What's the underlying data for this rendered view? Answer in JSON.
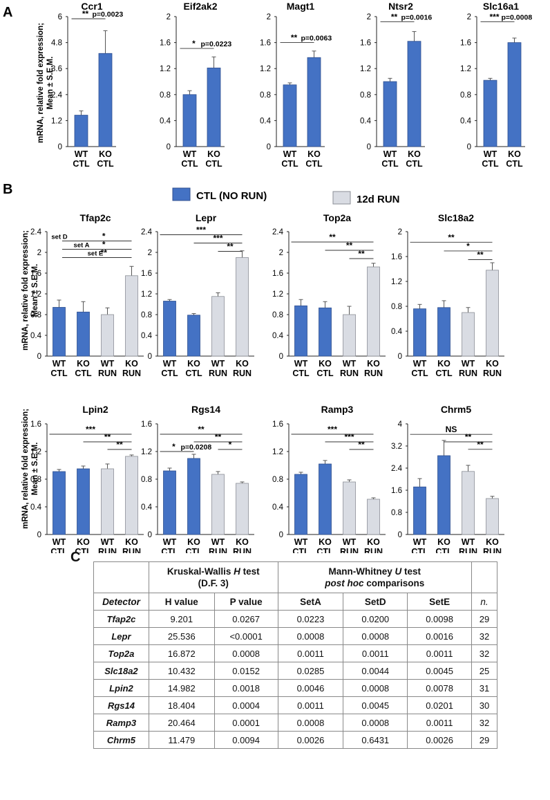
{
  "panel_labels": {
    "a": "A",
    "b": "B",
    "c": "C"
  },
  "ylabel_line1": "mRNA, relative fold expression;",
  "ylabel_line2": "Mean ± S.E.M.",
  "legend": {
    "ctl": "CTL (NO RUN)",
    "run": "12d RUN"
  },
  "colors": {
    "ctl": "#4472C4",
    "run": "#D9DCE3",
    "ctl_edge": "#2F4F8F",
    "run_edge": "#8A8E96"
  },
  "chart_data": [
    {
      "type": "bar",
      "title": "Ccr1",
      "categories": [
        [
          "WT",
          "CTL"
        ],
        [
          "KO",
          "CTL"
        ]
      ],
      "groups": [
        "ctl",
        "ctl"
      ],
      "values": [
        1.45,
        4.3
      ],
      "errors": [
        0.2,
        1.05
      ],
      "yticks": [
        "6",
        "4.8",
        "3.6",
        "2.4",
        "1.2",
        "0"
      ],
      "ylim": [
        0,
        6
      ],
      "brackets": [
        {
          "from": 0,
          "to": 1,
          "stars": "**",
          "p": "p=0.0023",
          "y": 5.9
        }
      ]
    },
    {
      "type": "bar",
      "title": "Eif2ak2",
      "categories": [
        [
          "WT",
          "CTL"
        ],
        [
          "KO",
          "CTL"
        ]
      ],
      "groups": [
        "ctl",
        "ctl"
      ],
      "values": [
        0.8,
        1.21
      ],
      "errors": [
        0.06,
        0.17
      ],
      "yticks": [
        "2",
        "1.6",
        "1.2",
        "0.8",
        "0.4",
        "0"
      ],
      "ylim": [
        0,
        2
      ],
      "brackets": [
        {
          "from": 0,
          "to": 1,
          "stars": "*",
          "p": "p=0.0223",
          "y": 1.51
        }
      ]
    },
    {
      "type": "bar",
      "title": "Magt1",
      "categories": [
        [
          "WT",
          "CTL"
        ],
        [
          "KO",
          "CTL"
        ]
      ],
      "groups": [
        "ctl",
        "ctl"
      ],
      "values": [
        0.95,
        1.37
      ],
      "errors": [
        0.03,
        0.1
      ],
      "yticks": [
        "2",
        "1.6",
        "1.2",
        "0.8",
        "0.4",
        "0"
      ],
      "ylim": [
        0,
        2
      ],
      "brackets": [
        {
          "from": 0,
          "to": 1,
          "stars": "**",
          "p": "p=0.0063",
          "y": 1.6
        }
      ]
    },
    {
      "type": "bar",
      "title": "Ntsr2",
      "categories": [
        [
          "WT",
          "CTL"
        ],
        [
          "KO",
          "CTL"
        ]
      ],
      "groups": [
        "ctl",
        "ctl"
      ],
      "values": [
        1.0,
        1.62
      ],
      "errors": [
        0.05,
        0.15
      ],
      "yticks": [
        "2",
        "1.6",
        "1.2",
        "0.8",
        "0.4",
        "0"
      ],
      "ylim": [
        0,
        2
      ],
      "brackets": [
        {
          "from": 0,
          "to": 1,
          "stars": "**",
          "p": "p=0.0016",
          "y": 1.92
        }
      ]
    },
    {
      "type": "bar",
      "title": "Slc16a1",
      "categories": [
        [
          "WT",
          "CTL"
        ],
        [
          "KO",
          "CTL"
        ]
      ],
      "groups": [
        "ctl",
        "ctl"
      ],
      "values": [
        1.02,
        1.6
      ],
      "errors": [
        0.03,
        0.07
      ],
      "yticks": [
        "2",
        "1.6",
        "1.2",
        "0.8",
        "0.4",
        "0"
      ],
      "ylim": [
        0,
        2
      ],
      "brackets": [
        {
          "from": 0,
          "to": 1,
          "stars": "***",
          "p": "p=0.0008",
          "y": 1.92
        }
      ]
    },
    {
      "type": "bar",
      "title": "Tfap2c",
      "categories": [
        [
          "WT",
          "CTL"
        ],
        [
          "KO",
          "CTL"
        ],
        [
          "WT",
          "RUN"
        ],
        [
          "KO",
          "RUN"
        ]
      ],
      "groups": [
        "ctl",
        "ctl",
        "run",
        "run"
      ],
      "values": [
        0.94,
        0.85,
        0.8,
        1.55
      ],
      "errors": [
        0.14,
        0.2,
        0.13,
        0.18
      ],
      "yticks": [
        "2.4",
        "2",
        "1.6",
        "1.2",
        "0.8",
        "0.4",
        "0"
      ],
      "ylim": [
        0,
        2.4
      ],
      "brackets": [
        {
          "from": 0,
          "to": 3,
          "stars": "*",
          "label": "set D",
          "y": 2.22
        },
        {
          "from": 1,
          "to": 3,
          "stars": "*",
          "label": "set A",
          "y": 2.06
        },
        {
          "from": 2,
          "to": 3,
          "stars": "**",
          "label": "set E",
          "y": 1.9
        }
      ]
    },
    {
      "type": "bar",
      "title": "Lepr",
      "categories": [
        [
          "WT",
          "CTL"
        ],
        [
          "KO",
          "CTL"
        ],
        [
          "WT",
          "RUN"
        ],
        [
          "KO",
          "RUN"
        ]
      ],
      "groups": [
        "ctl",
        "ctl",
        "run",
        "run"
      ],
      "values": [
        1.06,
        0.79,
        1.15,
        1.9
      ],
      "errors": [
        0.03,
        0.03,
        0.07,
        0.13
      ],
      "yticks": [
        "2.4",
        "2",
        "1.6",
        "1.2",
        "0.8",
        "0.4",
        "0"
      ],
      "ylim": [
        0,
        2.4
      ],
      "brackets": [
        {
          "from": 0,
          "to": 3,
          "stars": "***",
          "y": 2.34
        },
        {
          "from": 1,
          "to": 3,
          "stars": "***",
          "y": 2.18
        },
        {
          "from": 2,
          "to": 3,
          "stars": "**",
          "y": 2.02
        }
      ]
    },
    {
      "type": "bar",
      "title": "Top2a",
      "categories": [
        [
          "WT",
          "CTL"
        ],
        [
          "KO",
          "CTL"
        ],
        [
          "WT",
          "RUN"
        ],
        [
          "KO",
          "RUN"
        ]
      ],
      "groups": [
        "ctl",
        "ctl",
        "run",
        "run"
      ],
      "values": [
        0.97,
        0.93,
        0.8,
        1.72
      ],
      "errors": [
        0.12,
        0.12,
        0.16,
        0.07
      ],
      "yticks": [
        "2.4",
        "2",
        "1.6",
        "1.2",
        "0.8",
        "0.4",
        "0"
      ],
      "ylim": [
        0,
        2.4
      ],
      "brackets": [
        {
          "from": 0,
          "to": 3,
          "stars": "**",
          "y": 2.2
        },
        {
          "from": 1,
          "to": 3,
          "stars": "**",
          "y": 2.04
        },
        {
          "from": 2,
          "to": 3,
          "stars": "**",
          "y": 1.88
        }
      ]
    },
    {
      "type": "bar",
      "title": "Slc18a2",
      "categories": [
        [
          "WT",
          "CTL"
        ],
        [
          "KO",
          "CTL"
        ],
        [
          "WT",
          "RUN"
        ],
        [
          "KO",
          "RUN"
        ]
      ],
      "groups": [
        "ctl",
        "ctl",
        "run",
        "run"
      ],
      "values": [
        0.76,
        0.78,
        0.7,
        1.38
      ],
      "errors": [
        0.07,
        0.11,
        0.08,
        0.12
      ],
      "yticks": [
        "2",
        "1.6",
        "1.2",
        "0.8",
        "0.4",
        "0"
      ],
      "ylim": [
        0,
        2
      ],
      "brackets": [
        {
          "from": 0,
          "to": 3,
          "stars": "**",
          "y": 1.83
        },
        {
          "from": 1,
          "to": 3,
          "stars": "*",
          "y": 1.69
        },
        {
          "from": 2,
          "to": 3,
          "stars": "**",
          "y": 1.55
        }
      ]
    },
    {
      "type": "bar",
      "title": "Lpin2",
      "categories": [
        [
          "WT",
          "CTL"
        ],
        [
          "KO",
          "CTL"
        ],
        [
          "WT",
          "RUN"
        ],
        [
          "KO",
          "RUN"
        ]
      ],
      "groups": [
        "ctl",
        "ctl",
        "run",
        "run"
      ],
      "values": [
        0.91,
        0.95,
        0.95,
        1.13
      ],
      "errors": [
        0.03,
        0.04,
        0.07,
        0.02
      ],
      "yticks": [
        "1.6",
        "1.2",
        "0.8",
        "0.4",
        "0"
      ],
      "ylim": [
        0,
        1.6
      ],
      "brackets": [
        {
          "from": 0,
          "to": 3,
          "stars": "***",
          "y": 1.45
        },
        {
          "from": 1,
          "to": 3,
          "stars": "**",
          "y": 1.34
        },
        {
          "from": 2,
          "to": 3,
          "stars": "**",
          "y": 1.23
        }
      ]
    },
    {
      "type": "bar",
      "title": "Rgs14",
      "categories": [
        [
          "WT",
          "CTL"
        ],
        [
          "KO",
          "CTL"
        ],
        [
          "WT",
          "RUN"
        ],
        [
          "KO",
          "RUN"
        ]
      ],
      "groups": [
        "ctl",
        "ctl",
        "run",
        "run"
      ],
      "values": [
        0.92,
        1.1,
        0.87,
        0.74
      ],
      "errors": [
        0.04,
        0.06,
        0.04,
        0.02
      ],
      "yticks": [
        "1.6",
        "1.2",
        "0.8",
        "0.4",
        "0"
      ],
      "ylim": [
        0,
        1.6
      ],
      "brackets": [
        {
          "from": 0,
          "to": 3,
          "stars": "**",
          "y": 1.45
        },
        {
          "from": 1,
          "to": 3,
          "stars": "**",
          "y": 1.34
        },
        {
          "from": 2,
          "to": 3,
          "stars": "*",
          "y": 1.23
        },
        {
          "from": 0,
          "to": 1,
          "stars": "*",
          "p": "p=0.0208",
          "y": 1.2
        }
      ]
    },
    {
      "type": "bar",
      "title": "Ramp3",
      "categories": [
        [
          "WT",
          "CTL"
        ],
        [
          "KO",
          "CTL"
        ],
        [
          "WT",
          "RUN"
        ],
        [
          "KO",
          "RUN"
        ]
      ],
      "groups": [
        "ctl",
        "ctl",
        "run",
        "run"
      ],
      "values": [
        0.87,
        1.02,
        0.76,
        0.51
      ],
      "errors": [
        0.03,
        0.05,
        0.03,
        0.02
      ],
      "yticks": [
        "1.6",
        "1.2",
        "0.8",
        "0.4",
        "0"
      ],
      "ylim": [
        0,
        1.6
      ],
      "brackets": [
        {
          "from": 0,
          "to": 3,
          "stars": "***",
          "y": 1.45
        },
        {
          "from": 1,
          "to": 3,
          "stars": "***",
          "y": 1.34
        },
        {
          "from": 2,
          "to": 3,
          "stars": "**",
          "y": 1.23
        }
      ]
    },
    {
      "type": "bar",
      "title": "Chrm5",
      "categories": [
        [
          "WT",
          "CTL"
        ],
        [
          "KO",
          "CTL"
        ],
        [
          "WT",
          "RUN"
        ],
        [
          "KO",
          "RUN"
        ]
      ],
      "groups": [
        "ctl",
        "ctl",
        "run",
        "run"
      ],
      "values": [
        1.72,
        2.85,
        2.28,
        1.3
      ],
      "errors": [
        0.3,
        0.55,
        0.22,
        0.08
      ],
      "yticks": [
        "4",
        "3.2",
        "2.4",
        "1.6",
        "0.8",
        "0"
      ],
      "ylim": [
        0,
        4
      ],
      "brackets": [
        {
          "from": 0,
          "to": 3,
          "stars": "NS",
          "y": 3.62
        },
        {
          "from": 1,
          "to": 3,
          "stars": "**",
          "y": 3.35
        },
        {
          "from": 2,
          "to": 3,
          "stars": "**",
          "y": 3.08
        }
      ]
    }
  ],
  "table": {
    "kw_title": "Kruskal-Wallis",
    "kw_h": "H",
    "kw_test": "test",
    "kw_df": "(D.F. 3)",
    "mw_title": "Mann-Whitney",
    "mw_u": "U",
    "mw_test": "test",
    "mw_sub": "post hoc",
    "mw_sub2": "comparisons",
    "columns": [
      "Detector",
      "H value",
      "P value",
      "SetA",
      "SetD",
      "SetE",
      "n."
    ],
    "rows": [
      [
        "Tfap2c",
        "9.201",
        "0.0267",
        "0.0223",
        "0.0200",
        "0.0098",
        "29"
      ],
      [
        "Lepr",
        "25.536",
        "<0.0001",
        "0.0008",
        "0.0008",
        "0.0016",
        "32"
      ],
      [
        "Top2a",
        "16.872",
        "0.0008",
        "0.0011",
        "0.0011",
        "0.0011",
        "32"
      ],
      [
        "Slc18a2",
        "10.432",
        "0.0152",
        "0.0285",
        "0.0044",
        "0.0045",
        "25"
      ],
      [
        "Lpin2",
        "14.982",
        "0.0018",
        "0.0046",
        "0.0008",
        "0.0078",
        "31"
      ],
      [
        "Rgs14",
        "18.404",
        "0.0004",
        "0.0011",
        "0.0045",
        "0.0201",
        "30"
      ],
      [
        "Ramp3",
        "20.464",
        "0.0001",
        "0.0008",
        "0.0008",
        "0.0011",
        "32"
      ],
      [
        "Chrm5",
        "11.479",
        "0.0094",
        "0.0026",
        "0.6431",
        "0.0026",
        "29"
      ]
    ]
  }
}
